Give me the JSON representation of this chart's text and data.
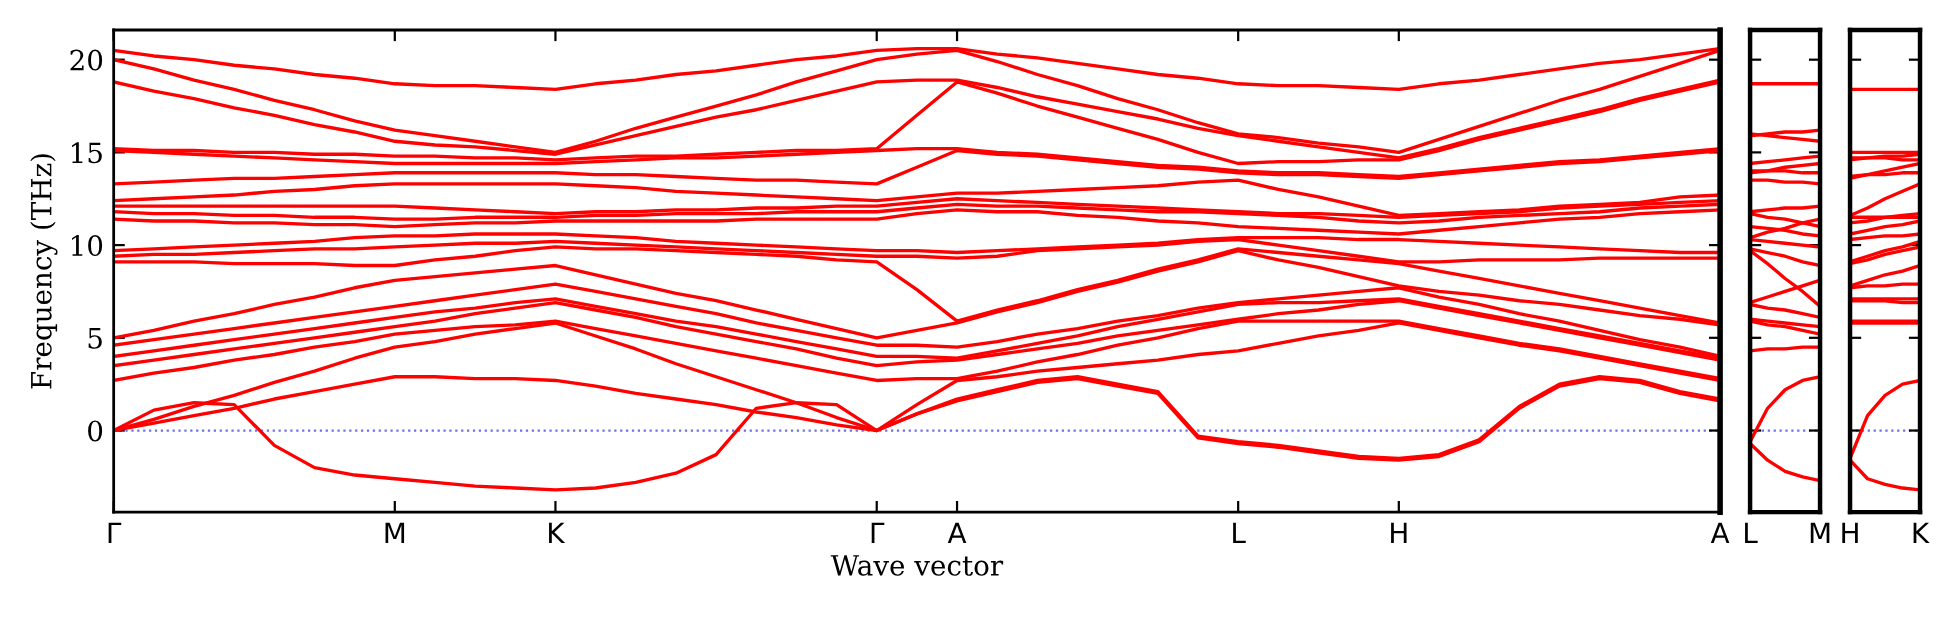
{
  "chart_data": [
    {
      "type": "line",
      "xlabel": "Wave vector",
      "ylabel": "Frequency (THz)",
      "ylim": [
        -4.4,
        21.6
      ],
      "yticks": [
        0,
        5,
        10,
        15,
        20
      ],
      "grid": false,
      "line_style": "solid",
      "ref_lines": [
        {
          "axis": "y",
          "value": 0,
          "color": "#6f6fe8",
          "line_style": "dotted"
        }
      ],
      "categories": [
        "Γ",
        null,
        null,
        null,
        null,
        null,
        null,
        "M",
        null,
        null,
        null,
        "K",
        null,
        null,
        null,
        null,
        null,
        null,
        null,
        "Γ",
        null,
        "A",
        null,
        null,
        null,
        null,
        null,
        null,
        "L",
        null,
        null,
        null,
        "H",
        null,
        null,
        null,
        null,
        null,
        null,
        null,
        "A"
      ],
      "series": [
        {
          "color": "#ff0000",
          "values": [
            0,
            1.1,
            1.5,
            1.4,
            -0.8,
            -2.0,
            -2.4,
            -2.6,
            -2.8,
            -3.0,
            -3.1,
            -3.2,
            -3.1,
            -2.8,
            -2.3,
            -1.3,
            1.2,
            1.5,
            1.4,
            0,
            0.9,
            1.6,
            2.1,
            2.6,
            2.8,
            2.4,
            2.0,
            -0.4,
            -0.7,
            -0.9,
            -1.2,
            -1.5,
            -1.6,
            -1.4,
            -0.6,
            1.2,
            2.4,
            2.8,
            2.6,
            2.0,
            1.6
          ]
        },
        {
          "color": "#ff0000",
          "values": [
            0,
            0.4,
            0.8,
            1.2,
            1.7,
            2.1,
            2.5,
            2.9,
            2.9,
            2.8,
            2.8,
            2.7,
            2.4,
            2.0,
            1.7,
            1.4,
            1.0,
            0.7,
            0.3,
            0,
            0.9,
            1.7,
            2.2,
            2.7,
            2.9,
            2.5,
            2.1,
            -0.3,
            -0.6,
            -0.8,
            -1.1,
            -1.4,
            -1.5,
            -1.3,
            -0.5,
            1.3,
            2.5,
            2.9,
            2.7,
            2.1,
            1.7
          ]
        },
        {
          "color": "#ff0000",
          "values": [
            0,
            0.6,
            1.3,
            1.9,
            2.6,
            3.2,
            3.9,
            4.5,
            4.8,
            5.2,
            5.5,
            5.8,
            5.1,
            4.4,
            3.6,
            2.9,
            2.2,
            1.5,
            0.7,
            0,
            1.4,
            2.7,
            2.9,
            3.2,
            3.4,
            3.6,
            3.8,
            4.1,
            4.3,
            4.7,
            5.1,
            5.4,
            5.8,
            5.4,
            5.0,
            4.6,
            4.3,
            3.9,
            3.5,
            3.1,
            2.7
          ]
        },
        {
          "color": "#ff0000",
          "values": [
            2.7,
            3.1,
            3.4,
            3.8,
            4.1,
            4.5,
            4.8,
            5.2,
            5.4,
            5.6,
            5.7,
            5.9,
            5.5,
            5.1,
            4.7,
            4.3,
            3.9,
            3.5,
            3.1,
            2.7,
            2.8,
            2.8,
            3.2,
            3.7,
            4.1,
            4.6,
            5.0,
            5.5,
            5.9,
            5.9,
            5.9,
            5.9,
            5.9,
            5.5,
            5.1,
            4.7,
            4.4,
            4.0,
            3.6,
            3.2,
            2.8
          ]
        },
        {
          "color": "#ff0000",
          "values": [
            3.5,
            3.8,
            4.1,
            4.4,
            4.7,
            5.0,
            5.3,
            5.6,
            5.9,
            6.3,
            6.6,
            6.9,
            6.5,
            6.1,
            5.6,
            5.2,
            4.8,
            4.4,
            3.9,
            3.5,
            3.7,
            3.8,
            4.1,
            4.4,
            4.7,
            5.1,
            5.4,
            5.7,
            6.0,
            6.3,
            6.5,
            6.8,
            7.0,
            6.6,
            6.2,
            5.8,
            5.4,
            5.0,
            4.6,
            4.2,
            3.8
          ]
        },
        {
          "color": "#ff0000",
          "values": [
            4.0,
            4.3,
            4.6,
            4.9,
            5.2,
            5.5,
            5.8,
            6.1,
            6.4,
            6.6,
            6.9,
            7.1,
            6.7,
            6.3,
            5.9,
            5.6,
            5.2,
            4.8,
            4.4,
            4.0,
            4.0,
            3.9,
            4.3,
            4.7,
            5.1,
            5.6,
            6.0,
            6.4,
            6.8,
            6.9,
            6.9,
            7.0,
            7.1,
            6.7,
            6.3,
            5.9,
            5.5,
            5.1,
            4.7,
            4.3,
            3.9
          ]
        },
        {
          "color": "#ff0000",
          "values": [
            4.6,
            4.9,
            5.2,
            5.5,
            5.8,
            6.1,
            6.4,
            6.7,
            7.0,
            7.3,
            7.6,
            7.9,
            7.5,
            7.1,
            6.7,
            6.3,
            5.8,
            5.4,
            5.0,
            4.6,
            4.6,
            4.5,
            4.8,
            5.2,
            5.5,
            5.9,
            6.2,
            6.6,
            6.9,
            7.1,
            7.3,
            7.5,
            7.7,
            7.2,
            6.8,
            6.3,
            5.9,
            5.4,
            4.9,
            4.5,
            4.0
          ]
        },
        {
          "color": "#ff0000",
          "values": [
            5.0,
            5.4,
            5.9,
            6.3,
            6.8,
            7.2,
            7.7,
            8.1,
            8.3,
            8.5,
            8.7,
            8.9,
            8.4,
            7.9,
            7.4,
            7.0,
            6.5,
            6.0,
            5.5,
            5.0,
            5.4,
            5.8,
            6.4,
            6.9,
            7.5,
            8.0,
            8.6,
            9.1,
            9.7,
            9.2,
            8.8,
            8.3,
            7.8,
            7.5,
            7.3,
            7.0,
            6.8,
            6.5,
            6.2,
            6.0,
            5.7
          ]
        },
        {
          "color": "#ff0000",
          "values": [
            9.1,
            9.1,
            9.1,
            9.0,
            9.0,
            9.0,
            8.9,
            8.9,
            9.2,
            9.4,
            9.7,
            9.9,
            9.8,
            9.8,
            9.7,
            9.6,
            9.5,
            9.4,
            9.2,
            9.1,
            7.6,
            5.9,
            6.5,
            7.0,
            7.6,
            8.1,
            8.7,
            9.2,
            9.8,
            9.6,
            9.4,
            9.2,
            9.0,
            8.6,
            8.2,
            7.8,
            7.4,
            7.0,
            6.6,
            6.2,
            5.8
          ]
        },
        {
          "color": "#ff0000",
          "values": [
            9.4,
            9.5,
            9.5,
            9.6,
            9.7,
            9.8,
            9.8,
            9.9,
            10.0,
            10.1,
            10.1,
            10.2,
            10.1,
            10.0,
            9.9,
            9.8,
            9.7,
            9.6,
            9.5,
            9.4,
            9.4,
            9.3,
            9.4,
            9.7,
            9.8,
            9.9,
            10.0,
            10.2,
            10.3,
            10.0,
            9.7,
            9.4,
            9.1,
            9.1,
            9.2,
            9.2,
            9.2,
            9.3,
            9.3,
            9.3,
            9.3
          ]
        },
        {
          "color": "#ff0000",
          "values": [
            9.7,
            9.8,
            9.9,
            10.0,
            10.1,
            10.2,
            10.4,
            10.5,
            10.5,
            10.6,
            10.6,
            10.6,
            10.5,
            10.4,
            10.2,
            10.1,
            10.0,
            9.9,
            9.8,
            9.7,
            9.7,
            9.6,
            9.7,
            9.8,
            9.9,
            10.0,
            10.1,
            10.3,
            10.4,
            10.4,
            10.4,
            10.3,
            10.3,
            10.2,
            10.1,
            10.0,
            9.9,
            9.8,
            9.7,
            9.6,
            9.6
          ]
        },
        {
          "color": "#ff0000",
          "values": [
            11.4,
            11.3,
            11.3,
            11.2,
            11.2,
            11.1,
            11.1,
            11.0,
            11.1,
            11.2,
            11.2,
            11.3,
            11.3,
            11.3,
            11.3,
            11.3,
            11.4,
            11.4,
            11.4,
            11.4,
            11.7,
            11.9,
            11.8,
            11.8,
            11.6,
            11.5,
            11.3,
            11.2,
            11.0,
            10.9,
            10.8,
            10.7,
            10.6,
            10.8,
            11.0,
            11.2,
            11.4,
            11.5,
            11.7,
            11.8,
            11.9
          ]
        },
        {
          "color": "#ff0000",
          "values": [
            11.8,
            11.7,
            11.7,
            11.6,
            11.6,
            11.5,
            11.5,
            11.4,
            11.4,
            11.5,
            11.5,
            11.5,
            11.6,
            11.6,
            11.7,
            11.7,
            11.7,
            11.8,
            11.8,
            11.8,
            12.0,
            12.2,
            12.1,
            12.1,
            12.0,
            11.9,
            11.8,
            11.8,
            11.7,
            11.6,
            11.5,
            11.3,
            11.2,
            11.3,
            11.5,
            11.6,
            11.7,
            11.8,
            12.0,
            12.1,
            12.2
          ]
        },
        {
          "color": "#ff0000",
          "values": [
            12.1,
            12.1,
            12.1,
            12.1,
            12.1,
            12.1,
            12.1,
            12.1,
            12.0,
            11.9,
            11.8,
            11.7,
            11.8,
            11.8,
            11.9,
            11.9,
            12.0,
            12.0,
            12.1,
            12.1,
            12.3,
            12.5,
            12.4,
            12.3,
            12.2,
            12.1,
            12.0,
            11.9,
            11.8,
            11.7,
            11.7,
            11.6,
            11.5,
            11.6,
            11.7,
            11.8,
            12.0,
            12.1,
            12.2,
            12.3,
            12.4
          ]
        },
        {
          "color": "#ff0000",
          "values": [
            12.4,
            12.5,
            12.6,
            12.7,
            12.9,
            13.0,
            13.2,
            13.3,
            13.3,
            13.3,
            13.3,
            13.3,
            13.2,
            13.1,
            12.9,
            12.8,
            12.7,
            12.6,
            12.5,
            12.4,
            12.6,
            12.8,
            12.8,
            12.9,
            13.0,
            13.1,
            13.2,
            13.4,
            13.5,
            13.0,
            12.6,
            12.1,
            11.6,
            11.7,
            11.8,
            11.9,
            12.1,
            12.2,
            12.3,
            12.6,
            12.7
          ]
        },
        {
          "color": "#ff0000",
          "values": [
            13.3,
            13.4,
            13.5,
            13.6,
            13.6,
            13.7,
            13.8,
            13.9,
            13.9,
            13.9,
            13.9,
            13.9,
            13.8,
            13.8,
            13.7,
            13.6,
            13.5,
            13.5,
            13.4,
            13.3,
            14.2,
            15.1,
            14.9,
            14.8,
            14.6,
            14.4,
            14.2,
            14.1,
            13.9,
            13.8,
            13.8,
            13.7,
            13.6,
            13.8,
            14.0,
            14.2,
            14.4,
            14.5,
            14.7,
            14.9,
            15.1
          ]
        },
        {
          "color": "#ff0000",
          "values": [
            15.1,
            15.0,
            14.9,
            14.8,
            14.7,
            14.6,
            14.5,
            14.4,
            14.4,
            14.4,
            14.4,
            14.4,
            14.5,
            14.6,
            14.7,
            14.7,
            14.8,
            14.9,
            15.0,
            15.1,
            15.2,
            15.2,
            15.0,
            14.9,
            14.7,
            14.5,
            14.3,
            14.2,
            14.0,
            13.9,
            13.9,
            13.8,
            13.7,
            13.9,
            14.1,
            14.3,
            14.5,
            14.6,
            14.8,
            15.0,
            15.2
          ]
        },
        {
          "color": "#ff0000",
          "values": [
            15.2,
            15.1,
            15.1,
            15.0,
            15.0,
            14.9,
            14.9,
            14.8,
            14.8,
            14.7,
            14.7,
            14.6,
            14.7,
            14.8,
            14.8,
            14.9,
            15.0,
            15.1,
            15.1,
            15.2,
            17.0,
            18.8,
            18.2,
            17.5,
            16.9,
            16.3,
            15.7,
            15.0,
            14.4,
            14.5,
            14.5,
            14.6,
            14.6,
            15.1,
            15.7,
            16.2,
            16.7,
            17.2,
            17.8,
            18.3,
            18.8
          ]
        },
        {
          "color": "#ff0000",
          "values": [
            18.8,
            18.3,
            17.9,
            17.4,
            17.0,
            16.5,
            16.1,
            15.6,
            15.4,
            15.3,
            15.1,
            14.9,
            15.4,
            15.9,
            16.4,
            16.9,
            17.3,
            17.8,
            18.3,
            18.8,
            18.9,
            18.9,
            18.5,
            18.0,
            17.6,
            17.2,
            16.8,
            16.3,
            15.9,
            15.6,
            15.3,
            15.0,
            14.7,
            15.2,
            15.8,
            16.3,
            16.8,
            17.3,
            17.9,
            18.4,
            18.9
          ]
        },
        {
          "color": "#ff0000",
          "values": [
            20.0,
            19.5,
            18.9,
            18.4,
            17.8,
            17.3,
            16.7,
            16.2,
            15.9,
            15.6,
            15.3,
            15.0,
            15.6,
            16.3,
            16.9,
            17.5,
            18.1,
            18.8,
            19.4,
            20.0,
            20.3,
            20.5,
            19.9,
            19.2,
            18.6,
            17.9,
            17.3,
            16.6,
            16.0,
            15.8,
            15.5,
            15.3,
            15.0,
            15.7,
            16.4,
            17.1,
            17.8,
            18.4,
            19.1,
            19.8,
            20.5
          ]
        },
        {
          "color": "#ff0000",
          "values": [
            20.5,
            20.2,
            20.0,
            19.7,
            19.5,
            19.2,
            19.0,
            18.7,
            18.6,
            18.6,
            18.5,
            18.4,
            18.7,
            18.9,
            19.2,
            19.4,
            19.7,
            20.0,
            20.2,
            20.5,
            20.6,
            20.6,
            20.3,
            20.1,
            19.8,
            19.5,
            19.2,
            19.0,
            18.7,
            18.6,
            18.6,
            18.5,
            18.4,
            18.7,
            18.9,
            19.2,
            19.5,
            19.8,
            20.0,
            20.3,
            20.6
          ]
        }
      ]
    },
    {
      "type": "line",
      "ylim": [
        -4.4,
        21.6
      ],
      "yticks": [
        0,
        5,
        10,
        15,
        20
      ],
      "tick_labels": "x",
      "grid": false,
      "line_style": "solid",
      "ref_lines": [
        {
          "axis": "y",
          "value": 0,
          "color": "#6f6fe8",
          "line_style": "dotted"
        }
      ],
      "categories": [
        "L",
        null,
        null,
        null,
        "M"
      ],
      "series": [
        {
          "color": "#ff0000",
          "values": [
            -0.7,
            -1.6,
            -2.2,
            -2.5,
            -2.7
          ]
        },
        {
          "color": "#ff0000",
          "values": [
            -0.6,
            1.2,
            2.2,
            2.7,
            2.9
          ]
        },
        {
          "color": "#ff0000",
          "values": [
            4.3,
            4.4,
            4.4,
            4.5,
            4.5
          ]
        },
        {
          "color": "#ff0000",
          "values": [
            5.9,
            5.7,
            5.6,
            5.4,
            5.2
          ]
        },
        {
          "color": "#ff0000",
          "values": [
            6.0,
            5.9,
            5.8,
            5.7,
            5.6
          ]
        },
        {
          "color": "#ff0000",
          "values": [
            6.8,
            6.6,
            6.5,
            6.3,
            6.1
          ]
        },
        {
          "color": "#ff0000",
          "values": [
            6.9,
            7.2,
            7.5,
            7.8,
            8.1
          ]
        },
        {
          "color": "#ff0000",
          "values": [
            9.7,
            9.0,
            8.2,
            7.5,
            6.7
          ]
        },
        {
          "color": "#ff0000",
          "values": [
            9.8,
            9.6,
            9.4,
            9.1,
            8.9
          ]
        },
        {
          "color": "#ff0000",
          "values": [
            10.3,
            10.2,
            10.1,
            10.0,
            9.9
          ]
        },
        {
          "color": "#ff0000",
          "values": [
            10.4,
            10.7,
            10.9,
            11.2,
            11.4
          ]
        },
        {
          "color": "#ff0000",
          "values": [
            11.0,
            10.9,
            10.8,
            10.6,
            10.5
          ]
        },
        {
          "color": "#ff0000",
          "values": [
            11.7,
            11.5,
            11.4,
            11.2,
            11.0
          ]
        },
        {
          "color": "#ff0000",
          "values": [
            11.8,
            11.9,
            12.0,
            12.0,
            12.1
          ]
        },
        {
          "color": "#ff0000",
          "values": [
            13.5,
            13.5,
            13.4,
            13.4,
            13.3
          ]
        },
        {
          "color": "#ff0000",
          "values": [
            13.9,
            14.0,
            14.2,
            14.3,
            14.4
          ]
        },
        {
          "color": "#ff0000",
          "values": [
            14.0,
            14.0,
            14.0,
            13.9,
            13.9
          ]
        },
        {
          "color": "#ff0000",
          "values": [
            14.4,
            14.5,
            14.6,
            14.7,
            14.8
          ]
        },
        {
          "color": "#ff0000",
          "values": [
            15.9,
            16.0,
            16.1,
            16.1,
            16.2
          ]
        },
        {
          "color": "#ff0000",
          "values": [
            16.0,
            15.9,
            15.8,
            15.7,
            15.6
          ]
        },
        {
          "color": "#ff0000",
          "values": [
            18.7,
            18.7,
            18.7,
            18.7,
            18.7
          ]
        }
      ]
    },
    {
      "type": "line",
      "ylim": [
        -4.4,
        21.6
      ],
      "yticks": [
        0,
        5,
        10,
        15,
        20
      ],
      "tick_labels": "x",
      "grid": false,
      "line_style": "solid",
      "ref_lines": [
        {
          "axis": "y",
          "value": 0,
          "color": "#6f6fe8",
          "line_style": "dotted"
        }
      ],
      "categories": [
        "H",
        null,
        null,
        null,
        "K"
      ],
      "series": [
        {
          "color": "#ff0000",
          "values": [
            -1.6,
            -2.6,
            -2.9,
            -3.1,
            -3.2
          ]
        },
        {
          "color": "#ff0000",
          "values": [
            -1.5,
            0.8,
            1.9,
            2.5,
            2.7
          ]
        },
        {
          "color": "#ff0000",
          "values": [
            5.8,
            5.8,
            5.8,
            5.8,
            5.8
          ]
        },
        {
          "color": "#ff0000",
          "values": [
            5.9,
            5.9,
            5.9,
            5.9,
            5.9
          ]
        },
        {
          "color": "#ff0000",
          "values": [
            7.0,
            7.0,
            7.0,
            6.9,
            6.9
          ]
        },
        {
          "color": "#ff0000",
          "values": [
            7.1,
            7.1,
            7.1,
            7.1,
            7.1
          ]
        },
        {
          "color": "#ff0000",
          "values": [
            7.7,
            7.8,
            7.8,
            7.9,
            7.9
          ]
        },
        {
          "color": "#ff0000",
          "values": [
            7.8,
            8.1,
            8.4,
            8.6,
            8.9
          ]
        },
        {
          "color": "#ff0000",
          "values": [
            9.0,
            9.2,
            9.5,
            9.7,
            9.9
          ]
        },
        {
          "color": "#ff0000",
          "values": [
            9.1,
            9.4,
            9.7,
            9.9,
            10.2
          ]
        },
        {
          "color": "#ff0000",
          "values": [
            10.3,
            10.4,
            10.5,
            10.5,
            10.6
          ]
        },
        {
          "color": "#ff0000",
          "values": [
            10.6,
            10.8,
            11.0,
            11.1,
            11.3
          ]
        },
        {
          "color": "#ff0000",
          "values": [
            11.2,
            11.3,
            11.5,
            11.6,
            11.7
          ]
        },
        {
          "color": "#ff0000",
          "values": [
            11.5,
            11.5,
            11.5,
            11.5,
            11.5
          ]
        },
        {
          "color": "#ff0000",
          "values": [
            11.6,
            12.0,
            12.5,
            12.9,
            13.3
          ]
        },
        {
          "color": "#ff0000",
          "values": [
            13.6,
            13.8,
            14.0,
            14.2,
            14.4
          ]
        },
        {
          "color": "#ff0000",
          "values": [
            13.7,
            13.8,
            13.8,
            13.9,
            13.9
          ]
        },
        {
          "color": "#ff0000",
          "values": [
            14.6,
            14.7,
            14.8,
            14.8,
            14.9
          ]
        },
        {
          "color": "#ff0000",
          "values": [
            14.7,
            14.7,
            14.7,
            14.6,
            14.6
          ]
        },
        {
          "color": "#ff0000",
          "values": [
            15.0,
            15.0,
            15.0,
            15.0,
            15.0
          ]
        },
        {
          "color": "#ff0000",
          "values": [
            18.4,
            18.4,
            18.4,
            18.4,
            18.4
          ]
        }
      ]
    }
  ]
}
